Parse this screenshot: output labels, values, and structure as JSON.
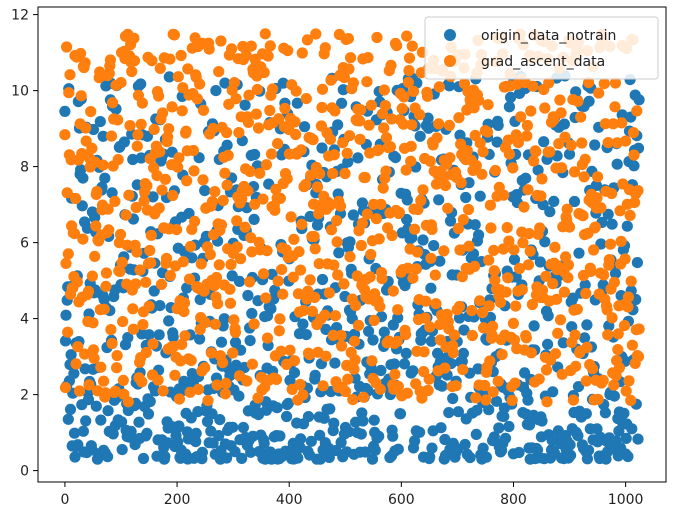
{
  "chart_data": {
    "type": "scatter",
    "title": "",
    "xlabel": "",
    "ylabel": "",
    "xlim": [
      -48,
      1072
    ],
    "ylim": [
      -0.3,
      12.2
    ],
    "xticks": [
      0,
      200,
      400,
      600,
      800,
      1000
    ],
    "yticks": [
      0,
      2,
      4,
      6,
      8,
      10,
      12
    ],
    "grid": false,
    "legend_position": "top-right",
    "x_range": [
      0,
      1024
    ],
    "series": [
      {
        "name": "origin_data_notrain",
        "color": "#1f77b4",
        "n_points": 1024,
        "min_value": 0.3,
        "max_value": 10.4,
        "distribution": "dense near 0.3–2, thinning toward 10"
      },
      {
        "name": "grad_ascent_data",
        "color": "#ff7f0e",
        "n_points": 1024,
        "min_value": 1.8,
        "max_value": 11.5,
        "distribution": "fairly uniform between ~1.8 and ~11.5"
      }
    ]
  }
}
